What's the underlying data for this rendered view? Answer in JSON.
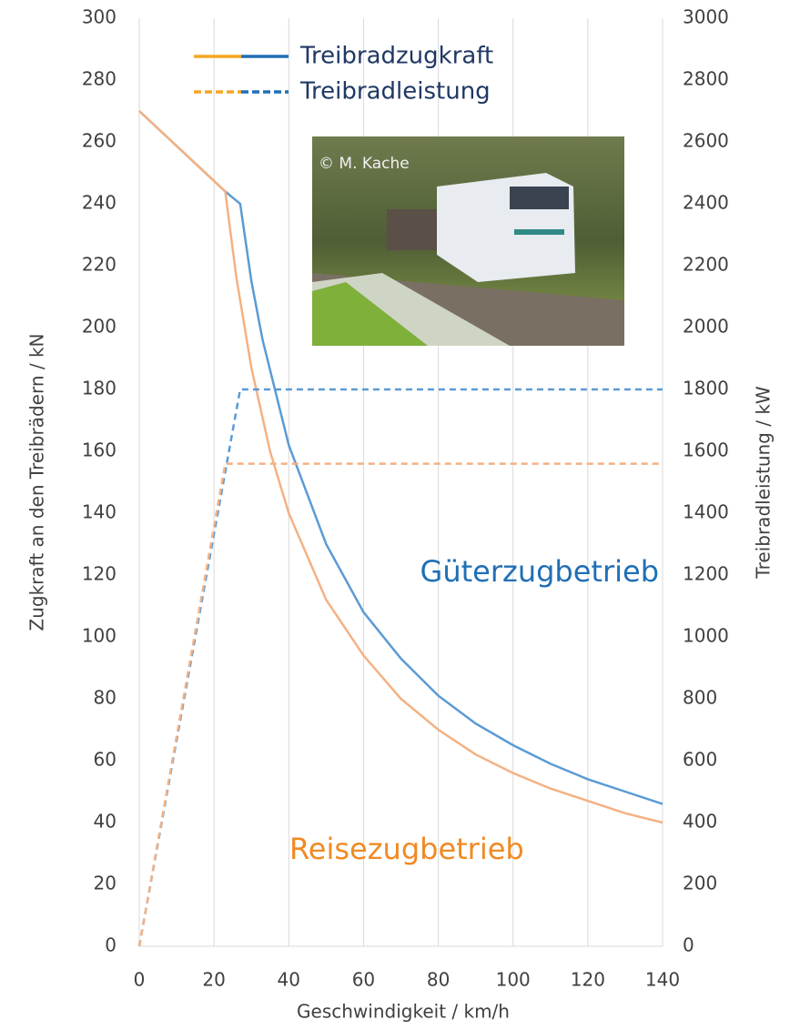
{
  "chart_data": {
    "type": "line",
    "x_label": "Geschwindigkeit / km/h",
    "y_label": "Zugkraft an den Treibrädern / kN",
    "y2_label": "Treibradleistung / kW",
    "xlim": [
      0,
      140
    ],
    "xticks": [
      0,
      20,
      40,
      60,
      80,
      100,
      120,
      140
    ],
    "ylim": [
      0,
      300
    ],
    "yticks": [
      0,
      20,
      40,
      60,
      80,
      100,
      120,
      140,
      160,
      180,
      200,
      220,
      240,
      260,
      280,
      300
    ],
    "y2lim": [
      0,
      3000
    ],
    "y2ticks": [
      0,
      200,
      400,
      600,
      800,
      1000,
      1200,
      1400,
      1600,
      1800,
      2000,
      2200,
      2400,
      2600,
      2800,
      3000
    ],
    "grid": "x",
    "legend": [
      {
        "label": "Treibradzugkraft",
        "dash": "solid",
        "colors": [
          "#f5a623",
          "#1f6fb5"
        ]
      },
      {
        "label": "Treibradleistung",
        "dash": "dashed",
        "colors": [
          "#f5a623",
          "#1f6fb5"
        ]
      }
    ],
    "series": [
      {
        "color": "#5b9bd5",
        "dash": "solid",
        "x": [
          0,
          23,
          27,
          30,
          33,
          40,
          50,
          60,
          70,
          80,
          90,
          100,
          110,
          120,
          130,
          140
        ],
        "values": [
          270,
          244,
          240,
          215,
          196,
          162,
          130,
          108,
          93,
          81,
          72,
          65,
          59,
          54,
          50,
          46
        ]
      },
      {
        "color": "#f4b183",
        "dash": "solid",
        "x": [
          0,
          23,
          26,
          30,
          35,
          40,
          50,
          60,
          70,
          80,
          90,
          100,
          110,
          120,
          130,
          140
        ],
        "values": [
          270,
          244,
          216,
          187,
          160,
          140,
          112,
          94,
          80,
          70,
          62,
          56,
          51,
          47,
          43,
          40
        ]
      },
      {
        "color": "#5b9bd5",
        "dash": "dashed",
        "axis": "y2",
        "x": [
          0,
          27,
          140
        ],
        "values": [
          0,
          1800,
          1800
        ]
      },
      {
        "color": "#f4b183",
        "dash": "dashed",
        "axis": "y2",
        "x": [
          0,
          23,
          140
        ],
        "values": [
          0,
          1560,
          1560
        ]
      }
    ],
    "annotations": [
      {
        "text": "Güterzugbetrieb",
        "color": "#1f6fb5"
      },
      {
        "text": "Reisezugbetrieb",
        "color": "#f08a24"
      }
    ],
    "photo_credit": "© M. Kache"
  }
}
